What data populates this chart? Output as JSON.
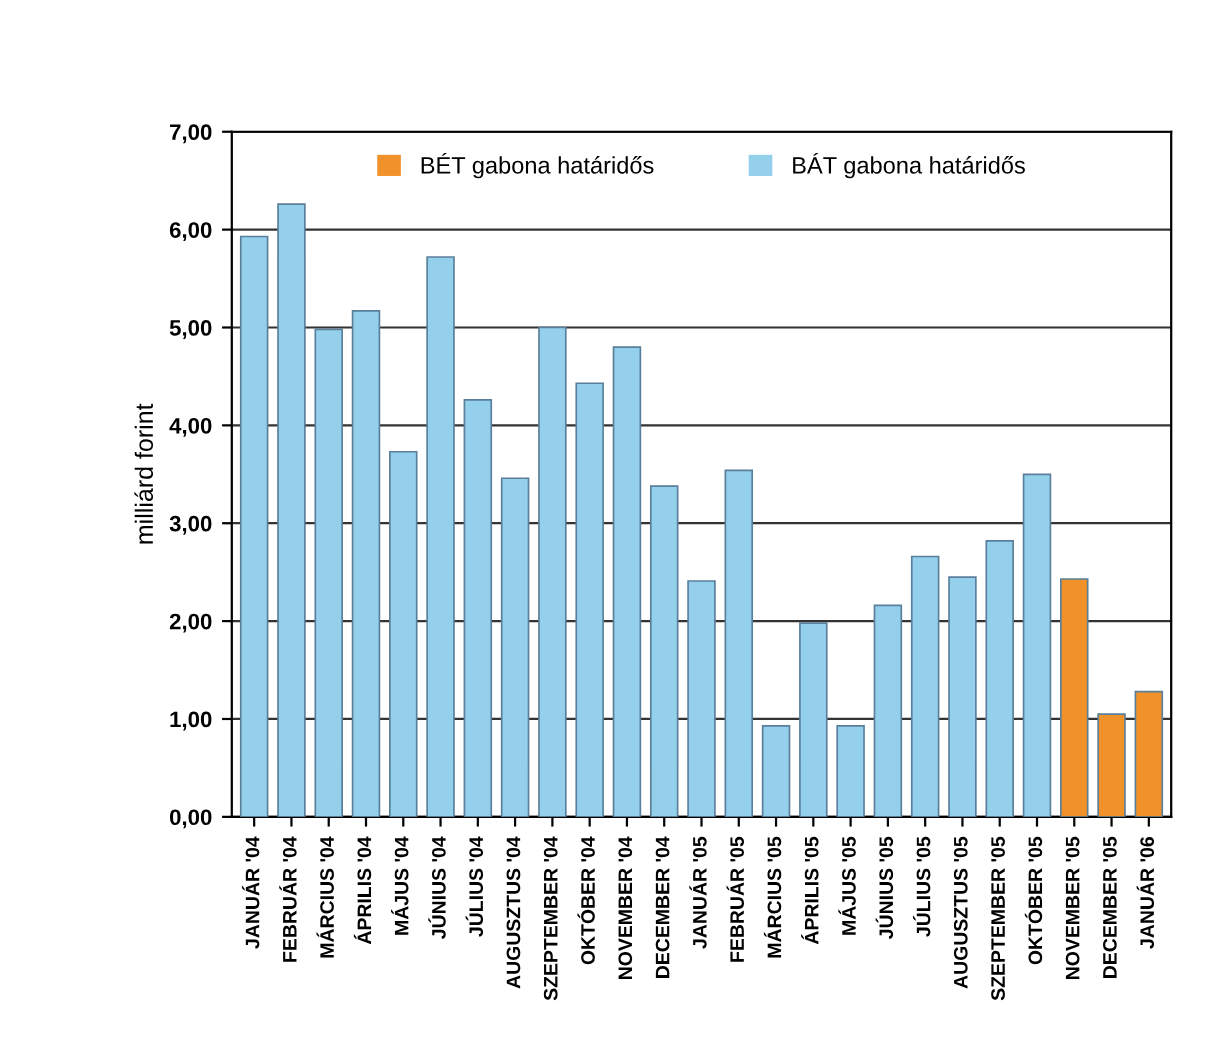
{
  "chart_data": {
    "type": "bar",
    "ylabel": "milliárd forint",
    "categories": [
      "JANUÁR '04",
      "FEBRUÁR '04",
      "MÁRCIUS '04",
      "ÁPRILIS '04",
      "MÁJUS '04",
      "JÚNIUS '04",
      "JÚLIUS '04",
      "AUGUSZTUS '04",
      "SZEPTEMBER '04",
      "OKTÓBER '04",
      "NOVEMBER '04",
      "DECEMBER '04",
      "JANUÁR '05",
      "FEBRUÁR '05",
      "MÁRCIUS '05",
      "ÁPRILIS '05",
      "MÁJUS '05",
      "JÚNIUS '05",
      "JÚLIUS '05",
      "AUGUSZTUS '05",
      "SZEPTEMBER '05",
      "OKTÓBER '05",
      "NOVEMBER '05",
      "DECEMBER '05",
      "JANUÁR '06"
    ],
    "series": [
      {
        "name": "BÉT gabona határidős",
        "color": "#f0912a",
        "values": [
          null,
          null,
          null,
          null,
          null,
          null,
          null,
          null,
          null,
          null,
          null,
          null,
          null,
          null,
          null,
          null,
          null,
          null,
          null,
          null,
          null,
          null,
          2.43,
          1.05,
          1.28
        ]
      },
      {
        "name": "BÁT gabona határidős",
        "color": "#94cfec",
        "values": [
          5.93,
          6.26,
          4.98,
          5.17,
          3.73,
          5.72,
          4.26,
          3.46,
          5.0,
          4.43,
          4.8,
          3.38,
          2.41,
          3.54,
          0.93,
          1.98,
          0.93,
          2.16,
          2.66,
          2.45,
          2.82,
          3.5,
          null,
          null,
          null
        ]
      }
    ],
    "ylim": [
      0,
      7
    ],
    "yticks": [
      {
        "value": 0,
        "label": "0,00"
      },
      {
        "value": 1,
        "label": "1,00"
      },
      {
        "value": 2,
        "label": "2,00"
      },
      {
        "value": 3,
        "label": "3,00"
      },
      {
        "value": 4,
        "label": "4,00"
      },
      {
        "value": 5,
        "label": "5,00"
      },
      {
        "value": 6,
        "label": "6,00"
      },
      {
        "value": 7,
        "label": "7,00"
      }
    ],
    "grid": "y",
    "legend": "top"
  }
}
